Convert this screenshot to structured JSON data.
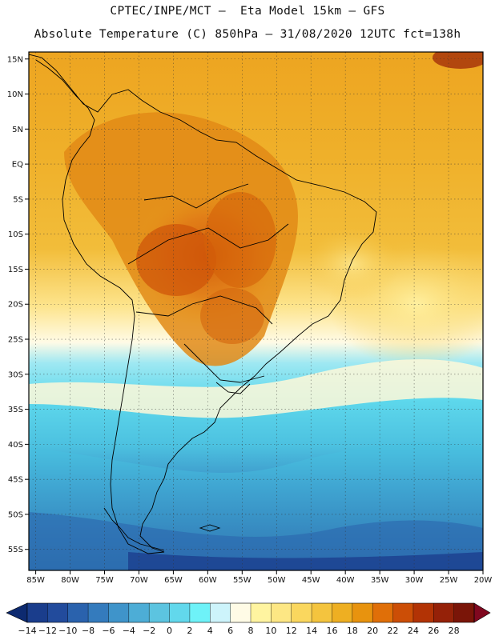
{
  "header": {
    "title_line1": "CPTEC/INPE/MCT –  Eta Model 15km – GFS",
    "title_line2": "Absolute Temperature (C) 850hPa – 31/08/2020 12UTC fct=138h"
  },
  "map": {
    "lat_labels": [
      "15N",
      "10N",
      "5N",
      "EQ",
      "5S",
      "10S",
      "15S",
      "20S",
      "25S",
      "30S",
      "35S",
      "40S",
      "45S",
      "50S",
      "55S"
    ],
    "lon_labels": [
      "85W",
      "80W",
      "75W",
      "70W",
      "65W",
      "60W",
      "55W",
      "50W",
      "45W",
      "40W",
      "35W",
      "30W",
      "25W",
      "20W"
    ],
    "extent": {
      "lon_min": -86,
      "lon_max": -20,
      "lat_min": -58,
      "lat_max": 16
    }
  },
  "colorbar": {
    "labels": [
      "-14",
      "-12",
      "-10",
      "-8",
      "-6",
      "-4",
      "-2",
      "0",
      "2",
      "4",
      "6",
      "8",
      "10",
      "12",
      "14",
      "16",
      "18",
      "20",
      "22",
      "24",
      "26",
      "28"
    ],
    "colors": [
      "#1a3d8c",
      "#224b9c",
      "#2a62ad",
      "#347bbd",
      "#3f94ca",
      "#4dadd6",
      "#5cc4e0",
      "#62d8ec",
      "#6ef2f8",
      "#cdf4fb",
      "#fffbe6",
      "#fff4a0",
      "#fde784",
      "#fad75e",
      "#f4c43e",
      "#eeaf22",
      "#e8930e",
      "#e06f08",
      "#cc4e06",
      "#b23305",
      "#952108",
      "#7a1508"
    ],
    "under_color": "#0d2a70",
    "over_color": "#80081f"
  }
}
